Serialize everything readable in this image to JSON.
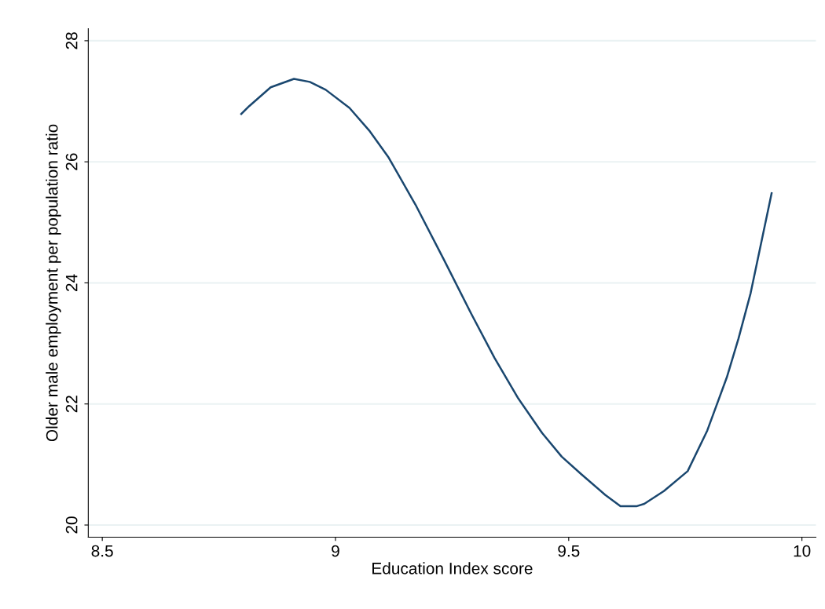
{
  "chart_data": {
    "type": "line",
    "xlabel": "Education Index score",
    "ylabel": "Older male employment per population ratio",
    "x": [
      8.798,
      8.815,
      8.861,
      8.911,
      8.945,
      8.979,
      9.03,
      9.072,
      9.114,
      9.173,
      9.232,
      9.291,
      9.341,
      9.392,
      9.443,
      9.485,
      9.527,
      9.578,
      9.611,
      9.645,
      9.662,
      9.704,
      9.755,
      9.797,
      9.839,
      9.864,
      9.89,
      9.935
    ],
    "series": [
      {
        "color": "#1a476f",
        "values": [
          26.79,
          26.92,
          27.23,
          27.37,
          27.32,
          27.19,
          26.89,
          26.52,
          26.07,
          25.27,
          24.39,
          23.49,
          22.76,
          22.09,
          21.52,
          21.13,
          20.84,
          20.5,
          20.31,
          20.31,
          20.35,
          20.56,
          20.89,
          21.56,
          22.44,
          23.08,
          23.83,
          25.48
        ]
      }
    ],
    "xlim": [
      8.47,
      10.03
    ],
    "ylim": [
      19.8,
      28.2
    ],
    "xticks": [
      8.5,
      9,
      9.5,
      10
    ],
    "yticks": [
      20,
      22,
      24,
      26,
      28
    ],
    "grid": "y",
    "legend": false,
    "marker": "none",
    "line_style": "solid"
  }
}
